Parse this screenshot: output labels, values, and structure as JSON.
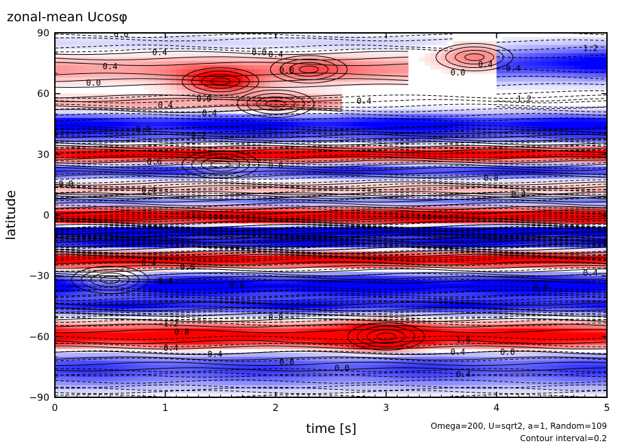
{
  "chart_data": {
    "type": "heatmap",
    "title": "zonal-mean Ucosφ",
    "xlabel": "time [s]",
    "ylabel": "latitude",
    "xlim": [
      0,
      5
    ],
    "ylim": [
      -90,
      90
    ],
    "x_ticks": [
      "0",
      "1",
      "2",
      "3",
      "4",
      "5"
    ],
    "y_ticks": [
      "90",
      "60",
      "30",
      "0",
      "−30",
      "−60",
      "−90"
    ],
    "notes": [
      "Omega=200, U=sqrt2, a=1, Random=109",
      "Contour interval=0.2"
    ],
    "colors": {
      "positive": "#ff0000",
      "negative": "#0000ff",
      "zero": "#ffffff"
    },
    "bands": [
      {
        "lat": 85,
        "width": 4,
        "amp": -0.2,
        "t_from": 0,
        "t_to": 3.6
      },
      {
        "lat": 72,
        "width": 6,
        "amp": 0.5,
        "t_from": 0,
        "t_to": 3.2
      },
      {
        "lat": 75,
        "width": 8,
        "amp": -1.2,
        "t_from": 4.0,
        "t_to": 5
      },
      {
        "lat": 55,
        "width": 4,
        "amp": 0.4,
        "t_from": 0,
        "t_to": 2.6
      },
      {
        "lat": 45,
        "width": 5,
        "amp": -1.2,
        "t_from": 0,
        "t_to": 5
      },
      {
        "lat": 38,
        "width": 4,
        "amp": -0.6,
        "t_from": 0,
        "t_to": 5
      },
      {
        "lat": 30,
        "width": 4,
        "amp": 1.4,
        "t_from": 0,
        "t_to": 5
      },
      {
        "lat": 22,
        "width": 4,
        "amp": -1.0,
        "t_from": 0,
        "t_to": 5
      },
      {
        "lat": 12,
        "width": 4,
        "amp": 0.4,
        "t_from": 0,
        "t_to": 5
      },
      {
        "lat": 6,
        "width": 4,
        "amp": -0.8,
        "t_from": 0,
        "t_to": 5
      },
      {
        "lat": 0,
        "width": 4,
        "amp": 2.0,
        "t_from": 0,
        "t_to": 5
      },
      {
        "lat": -8,
        "width": 3,
        "amp": -1.6,
        "t_from": 0,
        "t_to": 5
      },
      {
        "lat": -14,
        "width": 3,
        "amp": -1.2,
        "t_from": 0,
        "t_to": 5
      },
      {
        "lat": -22,
        "width": 4,
        "amp": 1.4,
        "t_from": 0,
        "t_to": 5
      },
      {
        "lat": -35,
        "width": 6,
        "amp": -1.4,
        "t_from": 0,
        "t_to": 5
      },
      {
        "lat": -45,
        "width": 4,
        "amp": -1.0,
        "t_from": 0,
        "t_to": 5
      },
      {
        "lat": -60,
        "width": 6,
        "amp": 1.4,
        "t_from": 0,
        "t_to": 5
      },
      {
        "lat": -75,
        "width": 8,
        "amp": -0.8,
        "t_from": 0,
        "t_to": 5
      },
      {
        "lat": -82,
        "width": 6,
        "amp": -0.2,
        "t_from": 0,
        "t_to": 5
      }
    ],
    "blobs": [
      {
        "t": 1.5,
        "lat": 66,
        "amp": 1.2
      },
      {
        "t": 2.3,
        "lat": 72,
        "amp": 0.4
      },
      {
        "t": 2.0,
        "lat": 55,
        "amp": 0.4
      },
      {
        "t": 3.8,
        "lat": 78,
        "amp": 0.6
      },
      {
        "t": 3.0,
        "lat": -60,
        "amp": 1.6
      },
      {
        "t": 0.5,
        "lat": -32,
        "amp": 0.6
      },
      {
        "t": 1.5,
        "lat": 25,
        "amp": 0.4
      }
    ],
    "contour_labels": [
      {
        "text": "0.0",
        "t": 0.6,
        "lat": 88
      },
      {
        "text": "0.4",
        "t": 0.95,
        "lat": 79
      },
      {
        "text": "0.0",
        "t": 1.85,
        "lat": 79
      },
      {
        "text": "0.4",
        "t": 2.0,
        "lat": 78
      },
      {
        "text": "0.8",
        "t": 2.1,
        "lat": 70
      },
      {
        "text": "0.4",
        "t": 0.5,
        "lat": 72
      },
      {
        "text": "0.0",
        "t": 0.35,
        "lat": 64
      },
      {
        "text": "0.0",
        "t": 1.35,
        "lat": 56
      },
      {
        "text": "0.4",
        "t": 1.0,
        "lat": 53
      },
      {
        "text": "0.4",
        "t": 1.4,
        "lat": 49
      },
      {
        "text": "0.4",
        "t": 2.8,
        "lat": 55
      },
      {
        "text": "0.8",
        "t": 0.8,
        "lat": 41
      },
      {
        "text": "0.2",
        "t": 1.3,
        "lat": 38
      },
      {
        "text": "0.0",
        "t": 3.65,
        "lat": 69
      },
      {
        "text": "0.4",
        "t": 3.9,
        "lat": 73
      },
      {
        "text": "0.4",
        "t": 4.15,
        "lat": 71
      },
      {
        "text": "1.2",
        "t": 4.85,
        "lat": 81
      },
      {
        "text": "1.2",
        "t": 4.25,
        "lat": 56
      },
      {
        "text": "0.6",
        "t": 0.9,
        "lat": 25
      },
      {
        "text": "0.8",
        "t": 2.0,
        "lat": 23
      },
      {
        "text": "0.0",
        "t": 0.1,
        "lat": 14
      },
      {
        "text": "0.4",
        "t": 0.85,
        "lat": 11
      },
      {
        "text": "0.8",
        "t": 3.95,
        "lat": 17
      },
      {
        "text": "0.4",
        "t": 4.2,
        "lat": 9
      },
      {
        "text": "0.4",
        "t": 0.85,
        "lat": -25
      },
      {
        "text": "0.0",
        "t": 1.2,
        "lat": -27
      },
      {
        "text": "0.4",
        "t": 1.0,
        "lat": -34
      },
      {
        "text": "0.6",
        "t": 1.65,
        "lat": -36
      },
      {
        "text": "0.8",
        "t": 4.4,
        "lat": -37
      },
      {
        "text": "0.4",
        "t": 4.85,
        "lat": -30
      },
      {
        "text": "1.2",
        "t": 1.05,
        "lat": -55
      },
      {
        "text": "0.8",
        "t": 1.15,
        "lat": -59
      },
      {
        "text": "0.8",
        "t": 2.0,
        "lat": -52
      },
      {
        "text": "0.4",
        "t": 1.05,
        "lat": -67
      },
      {
        "text": "0.4",
        "t": 1.45,
        "lat": -70
      },
      {
        "text": "0.8",
        "t": 2.1,
        "lat": -74
      },
      {
        "text": "0.0",
        "t": 2.6,
        "lat": -77
      },
      {
        "text": "1.6",
        "t": 3.7,
        "lat": -63
      },
      {
        "text": "0.4",
        "t": 3.65,
        "lat": -69
      },
      {
        "text": "0.0",
        "t": 4.1,
        "lat": -69
      },
      {
        "text": "0.4",
        "t": 3.7,
        "lat": -80
      }
    ]
  }
}
